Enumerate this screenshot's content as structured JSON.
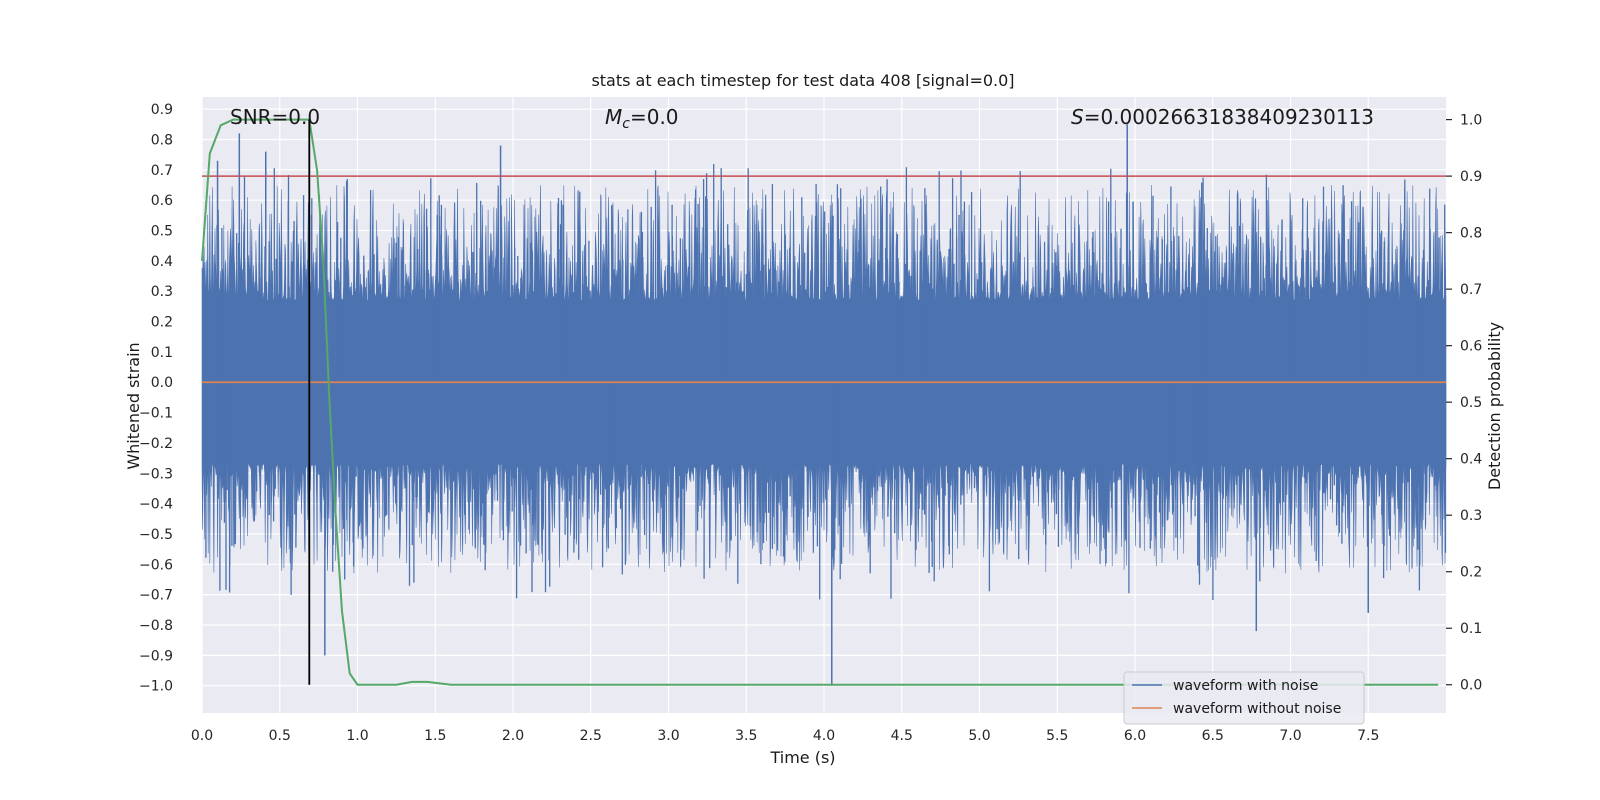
{
  "chart_data": {
    "type": "line",
    "title": "stats at each timestep for test data 408 [signal=0.0]",
    "xlabel": "Time (s)",
    "ylabel": "Whitened strain",
    "y2label": "Detection probability",
    "xlim": [
      0,
      8
    ],
    "ylim": [
      -1.09,
      0.94
    ],
    "y2lim": [
      -0.05,
      1.04
    ],
    "xticks": [
      "0.0",
      "0.5",
      "1.0",
      "1.5",
      "2.0",
      "2.5",
      "3.0",
      "3.5",
      "4.0",
      "4.5",
      "5.0",
      "5.5",
      "6.0",
      "6.5",
      "7.0",
      "7.5"
    ],
    "yticks": [
      "0.9",
      "0.8",
      "0.7",
      "0.6",
      "0.5",
      "0.4",
      "0.3",
      "0.2",
      "0.1",
      "0.0",
      "−0.1",
      "−0.2",
      "−0.3",
      "−0.4",
      "−0.5",
      "−0.6",
      "−0.7",
      "−0.8",
      "−0.9",
      "−1.0"
    ],
    "y2ticks": [
      "1.0",
      "0.9",
      "0.8",
      "0.7",
      "0.6",
      "0.5",
      "0.4",
      "0.3",
      "0.2",
      "0.1",
      "0.0"
    ],
    "annotations": {
      "snr": "SNR=0.0",
      "mc_symbol": "M",
      "mc_sub": "c",
      "mc_value": "=0.0",
      "s_symbol": "S",
      "s_value": "=0.0002663183840923011​3"
    },
    "threshold": 0.9,
    "marker_time": 0.69,
    "legend": {
      "placement": "bottom-right",
      "items": [
        {
          "label": "waveform with noise",
          "color": "#4c72b0"
        },
        {
          "label": "waveform without noise",
          "color": "#dd8452"
        }
      ]
    },
    "series": [
      {
        "name": "waveform with noise",
        "color": "#4c72b0",
        "notable_peaks": [
          {
            "t": 0.1,
            "v": 0.73
          },
          {
            "t": 0.24,
            "v": 0.82
          },
          {
            "t": 0.41,
            "v": 0.76
          },
          {
            "t": 0.79,
            "v": -0.9
          },
          {
            "t": 1.92,
            "v": 0.78
          },
          {
            "t": 4.05,
            "v": -1.0
          },
          {
            "t": 5.95,
            "v": 0.85
          },
          {
            "t": 6.78,
            "v": -0.82
          },
          {
            "t": 7.5,
            "v": -0.76
          }
        ]
      },
      {
        "name": "waveform without noise",
        "color": "#dd8452",
        "x": [
          0,
          8
        ],
        "y": [
          0,
          0
        ]
      },
      {
        "name": "detection probability",
        "color": "#55a868",
        "axis": "right",
        "x": [
          0,
          0.05,
          0.12,
          0.2,
          0.3,
          0.5,
          0.69,
          0.74,
          0.78,
          0.82,
          0.86,
          0.9,
          0.95,
          1.0,
          1.1,
          1.25,
          1.35,
          1.45,
          1.6,
          2.0,
          7.95
        ],
        "y": [
          0.75,
          0.94,
          0.99,
          1.0,
          1.0,
          1.0,
          1.0,
          0.91,
          0.75,
          0.5,
          0.3,
          0.13,
          0.02,
          0.0,
          0.0,
          0.0,
          0.005,
          0.005,
          0.0,
          0.0,
          0.0
        ]
      }
    ],
    "colors": {
      "plot_bg": "#eaeaf2",
      "grid": "#ffffff",
      "threshold": "#c44e52",
      "marker": "#000000"
    }
  }
}
